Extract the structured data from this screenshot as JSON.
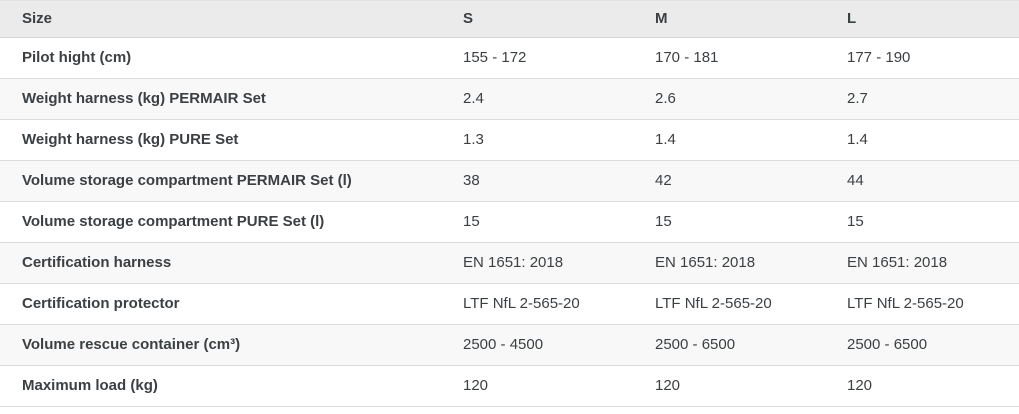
{
  "table": {
    "header": {
      "labels": [
        "Size",
        "S",
        "M",
        "L"
      ]
    },
    "rows": [
      {
        "label": "Pilot hight (cm)",
        "values": [
          "155 - 172",
          "170 - 181",
          "177 - 190"
        ]
      },
      {
        "label": "Weight harness (kg) PERMAIR Set",
        "values": [
          "2.4",
          "2.6",
          "2.7"
        ]
      },
      {
        "label": "Weight harness (kg) PURE Set",
        "values": [
          "1.3",
          "1.4",
          "1.4"
        ]
      },
      {
        "label": "Volume storage compartment PERMAIR Set (l)",
        "values": [
          "38",
          "42",
          "44"
        ]
      },
      {
        "label": "Volume storage compartment PURE Set (l)",
        "values": [
          "15",
          "15",
          "15"
        ]
      },
      {
        "label": "Certification harness",
        "values": [
          "EN 1651: 2018",
          "EN 1651: 2018",
          "EN 1651: 2018"
        ]
      },
      {
        "label": "Certification protector",
        "values": [
          "LTF NfL 2-565-20",
          "LTF NfL 2-565-20",
          "LTF NfL 2-565-20"
        ]
      },
      {
        "label": "Volume rescue container (cm³)",
        "values": [
          "2500 - 4500",
          "2500 - 6500",
          "2500 - 6500"
        ]
      },
      {
        "label": "Maximum load (kg)",
        "values": [
          "120",
          "120",
          "120"
        ]
      }
    ]
  },
  "colors": {
    "header_bg": "#ebebeb",
    "stripe_bg": "#f8f8f8",
    "row_bg": "#ffffff",
    "border": "#dcdcdc",
    "header_border": "#d4d4d4",
    "text": "#3c4043"
  }
}
